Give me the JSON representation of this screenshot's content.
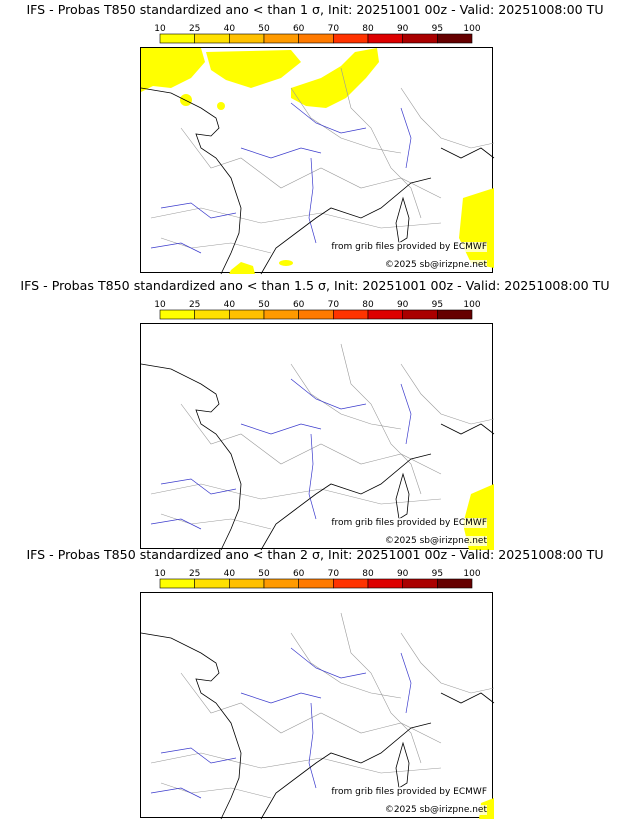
{
  "panels": [
    {
      "title": "IFS - Probas T850  standardized ano < than 1 σ, Init: 20251001 00z - Valid: 20251008:00 TU"
    },
    {
      "title": "IFS - Probas T850  standardized ano < than 1.5 σ, Init: 20251001 00z - Valid: 20251008:00 TU"
    },
    {
      "title": "IFS - Probas T850  standardized ano < than 2 σ, Init: 20251001 00z - Valid: 20251008:00 TU"
    }
  ],
  "colorbar": {
    "ticks": [
      "10",
      "25",
      "40",
      "50",
      "60",
      "70",
      "80",
      "90",
      "95",
      "100"
    ],
    "colors": [
      "#ffff00",
      "#ffe000",
      "#ffc000",
      "#ff9a00",
      "#ff7a00",
      "#ff3300",
      "#dd0000",
      "#aa0000",
      "#660000"
    ]
  },
  "credit_source": "from grib files provided by ECMWF",
  "credit_copy": "©2025 sb@irizpne.net",
  "colors": {
    "river": "#3a3acc",
    "border": "#9a9a9a",
    "coast": "#000000",
    "prob": "#ffff00"
  }
}
